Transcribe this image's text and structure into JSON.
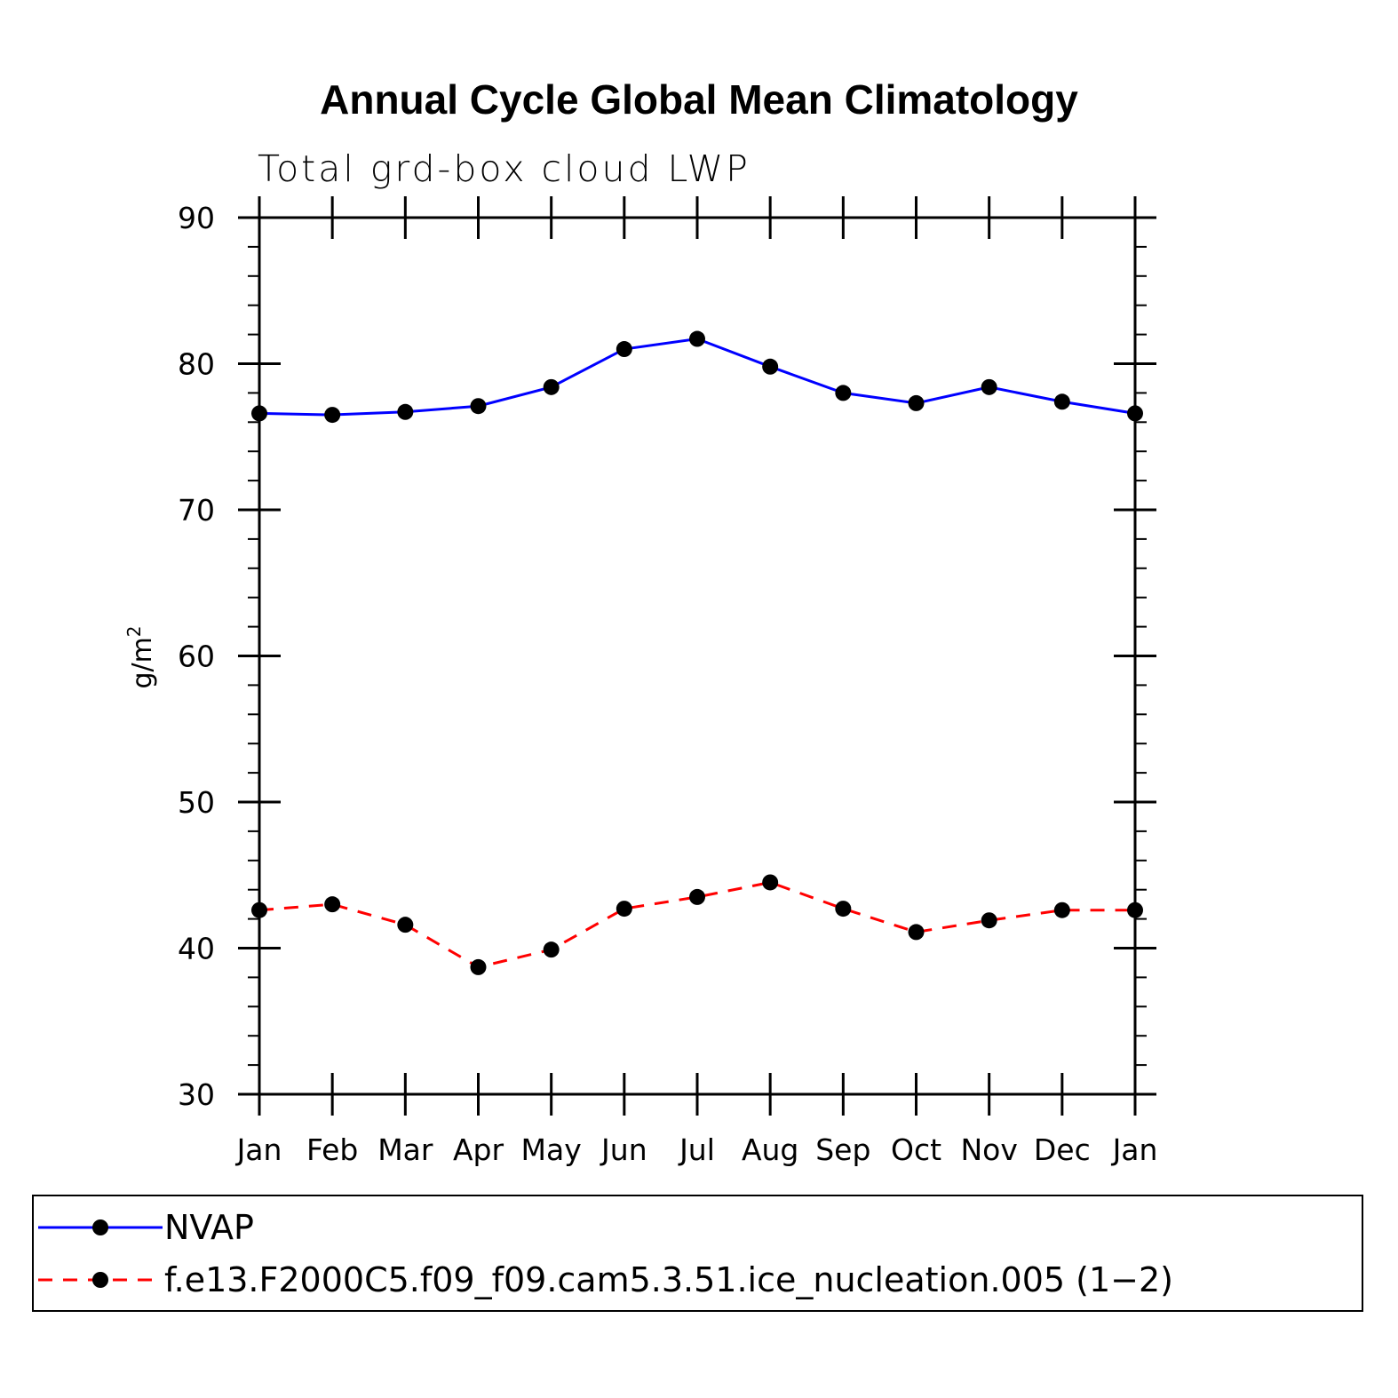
{
  "chart_data": {
    "type": "line",
    "title": "Annual Cycle Global Mean Climatology",
    "subtitle": "Total grd-box cloud LWP",
    "ylabel": "g/m",
    "ylabel_superscript": "2",
    "xlabel": "",
    "ylim": [
      30,
      90
    ],
    "yticks": [
      30,
      40,
      50,
      60,
      70,
      80,
      90
    ],
    "grid": false,
    "legend_position": "bottom",
    "categories": [
      "Jan",
      "Feb",
      "Mar",
      "Apr",
      "May",
      "Jun",
      "Jul",
      "Aug",
      "Sep",
      "Oct",
      "Nov",
      "Dec",
      "Jan"
    ],
    "series": [
      {
        "name": "NVAP",
        "color": "#0000ff",
        "dash": "solid",
        "marker": "circle",
        "values": [
          76.6,
          76.5,
          76.7,
          77.1,
          78.4,
          81.0,
          81.7,
          79.8,
          78.0,
          77.3,
          78.4,
          77.4,
          76.6
        ]
      },
      {
        "name": "f.e13.F2000C5.f09_f09.cam5.3.51.ice_nucleation.005 (1−2)",
        "color": "#ff0000",
        "dash": "dashed",
        "marker": "circle",
        "values": [
          42.6,
          43.0,
          41.6,
          38.7,
          39.9,
          42.7,
          43.5,
          44.5,
          42.7,
          41.1,
          41.9,
          42.6,
          42.6
        ]
      }
    ]
  }
}
